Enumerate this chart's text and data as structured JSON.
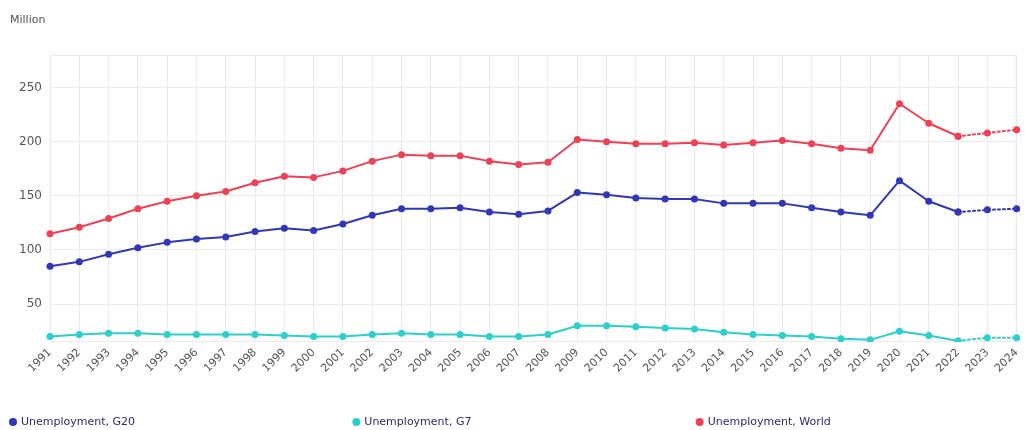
{
  "chart_data": {
    "type": "line",
    "ylabel": "Million",
    "categories": [
      "1991",
      "1992",
      "1993",
      "1994",
      "1995",
      "1996",
      "1997",
      "1998",
      "1999",
      "2000",
      "2001",
      "2002",
      "2003",
      "2004",
      "2005",
      "2006",
      "2007",
      "2008",
      "2009",
      "2010",
      "2011",
      "2012",
      "2013",
      "2014",
      "2015",
      "2016",
      "2017",
      "2018",
      "2019",
      "2020",
      "2021",
      "2022",
      "2023",
      "2024"
    ],
    "ylim": [
      15,
      280
    ],
    "yticks": [
      50,
      100,
      150,
      200,
      250
    ],
    "grid": true,
    "legend": "bottom",
    "marker": "circle",
    "series": [
      {
        "name": "Unemployment, G20",
        "color": "#3237b5",
        "values": [
          85,
          89,
          96,
          102,
          107,
          110,
          112,
          117,
          120,
          118,
          124,
          132,
          138,
          138,
          139,
          135,
          133,
          136,
          153,
          151,
          148,
          147,
          147,
          143,
          143,
          143,
          139,
          135,
          132,
          164,
          145,
          135,
          null,
          null
        ]
      },
      {
        "name": "Unemployment, G7",
        "color": "#2ccfcc",
        "values": [
          20,
          22,
          23,
          23,
          22,
          22,
          22,
          22,
          21,
          20,
          20,
          22,
          23,
          22,
          22,
          20,
          20,
          22,
          30,
          30,
          29,
          28,
          27,
          24,
          22,
          21,
          20,
          18,
          17,
          25,
          21,
          16,
          null,
          null
        ]
      },
      {
        "name": "Unemployment, World",
        "color": "#ef4156",
        "values": [
          115,
          121,
          129,
          138,
          145,
          150,
          154,
          162,
          168,
          167,
          173,
          182,
          188,
          187,
          187,
          182,
          179,
          181,
          202,
          200,
          198,
          198,
          199,
          197,
          199,
          201,
          198,
          194,
          192,
          235,
          217,
          205,
          null,
          null
        ]
      },
      {
        "color": "#3237b5",
        "line_style": "dotted",
        "values": [
          null,
          null,
          null,
          null,
          null,
          null,
          null,
          null,
          null,
          null,
          null,
          null,
          null,
          null,
          null,
          null,
          null,
          null,
          null,
          null,
          null,
          null,
          null,
          null,
          null,
          null,
          null,
          null,
          null,
          null,
          null,
          135,
          137,
          138
        ]
      },
      {
        "color": "#2ccfcc",
        "line_style": "dotted",
        "values": [
          null,
          null,
          null,
          null,
          null,
          null,
          null,
          null,
          null,
          null,
          null,
          null,
          null,
          null,
          null,
          null,
          null,
          null,
          null,
          null,
          null,
          null,
          null,
          null,
          null,
          null,
          null,
          null,
          null,
          null,
          null,
          16,
          19,
          19
        ]
      },
      {
        "color": "#ef4156",
        "line_style": "dotted",
        "values": [
          null,
          null,
          null,
          null,
          null,
          null,
          null,
          null,
          null,
          null,
          null,
          null,
          null,
          null,
          null,
          null,
          null,
          null,
          null,
          null,
          null,
          null,
          null,
          null,
          null,
          null,
          null,
          null,
          null,
          null,
          null,
          205,
          208,
          211
        ]
      }
    ]
  }
}
